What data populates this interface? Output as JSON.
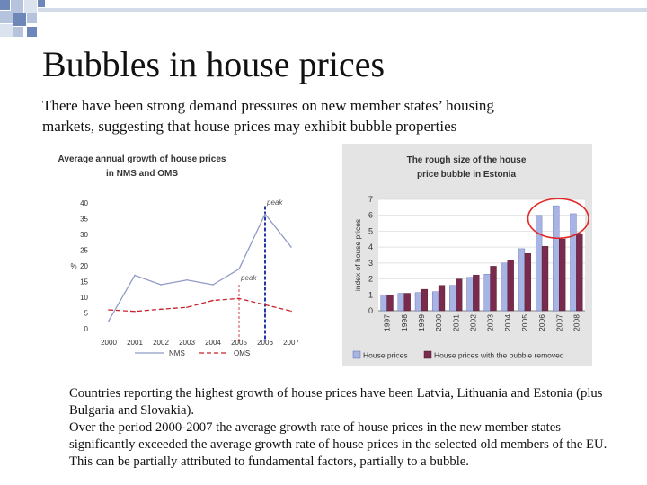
{
  "slide": {
    "title": "Bubbles in house prices",
    "subtitle": "There have been strong demand pressures on new member states’ housing markets, suggesting that house prices may exhibit bubble properties",
    "body": [
      "Countries reporting the highest growth of house prices have been Latvia, Lithuania and Estonia (plus Bulgaria and Slovakia).",
      "Over the period 2000-2007 the average growth rate of house prices in the new member states significantly exceeded the average growth rate of house prices in the selected old members of the EU. This can be partially attributed to fundamental factors, partially to a bubble."
    ]
  },
  "colors": {
    "line_nms": "#8f9ac4",
    "line_oms": "#c8202a",
    "peak_line_blue": "#2338a8",
    "peak_line_red": "#d04040",
    "bar_house": "#a8b4e4",
    "bar_removed": "#7a2a4c",
    "panel_bg": "#e4e4e4",
    "ellipse": "#e02828",
    "deco_square": "#d3dbe8"
  },
  "chart_data": [
    {
      "type": "line",
      "title": "Average annual growth of house prices in NMS and OMS",
      "ylabel": "%",
      "xlabel": "",
      "categories": [
        "2000",
        "2001",
        "2002",
        "2003",
        "2004",
        "2005",
        "2006",
        "2007"
      ],
      "ylim": [
        0,
        40
      ],
      "yticks": [
        0,
        5,
        10,
        15,
        20,
        25,
        30,
        35,
        40
      ],
      "series": [
        {
          "name": "NMS",
          "style": "solid",
          "values": [
            2.5,
            17,
            14,
            15.5,
            14,
            19,
            36.5,
            26
          ]
        },
        {
          "name": "OMS",
          "style": "dashed",
          "values": [
            6,
            5.5,
            6.2,
            6.8,
            9,
            9.6,
            7.6,
            5.6
          ]
        }
      ],
      "annotations": [
        {
          "text": "peak",
          "x": "2006",
          "y": 39.5
        },
        {
          "text": "peak",
          "x": "2005",
          "y": 15.5
        }
      ],
      "legend": [
        "NMS",
        "OMS"
      ],
      "grid": false
    },
    {
      "type": "bar",
      "title": "The rough size of the house price bubble in Estonia",
      "ylabel": "index of house prices",
      "xlabel": "",
      "categories": [
        "1997",
        "1998",
        "1999",
        "2000",
        "2001",
        "2002",
        "2003",
        "2004",
        "2005",
        "2006",
        "2007",
        "2008"
      ],
      "ylim": [
        0,
        7
      ],
      "yticks": [
        0,
        1,
        2,
        3,
        4,
        5,
        6,
        7
      ],
      "series": [
        {
          "name": "House prices",
          "values": [
            1.0,
            1.1,
            1.15,
            1.2,
            1.6,
            2.1,
            2.3,
            3.0,
            3.9,
            6.0,
            6.6,
            6.1
          ]
        },
        {
          "name": "House prices with the bubble removed",
          "values": [
            1.0,
            1.1,
            1.35,
            1.6,
            2.0,
            2.25,
            2.8,
            3.2,
            3.6,
            4.05,
            4.5,
            4.85
          ]
        }
      ],
      "legend": [
        "House prices",
        "House prices with the bubble removed"
      ],
      "grid": true,
      "highlight": "2006-2008"
    }
  ]
}
